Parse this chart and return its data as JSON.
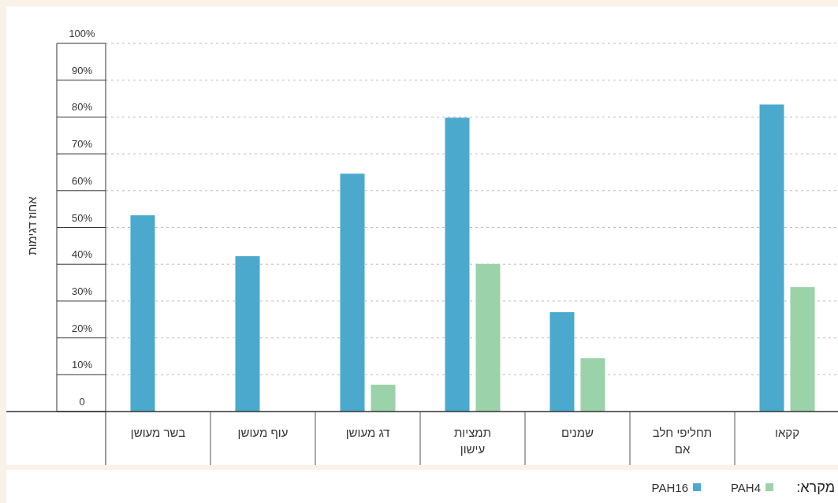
{
  "chart_data": {
    "type": "bar",
    "ylabel": "אחוז דגימות",
    "legend_title": "מקרא:",
    "categories": [
      "בשר מעושן",
      "עוף מעושן",
      "דג מעושן",
      "תמציות עישון",
      "שמנים",
      "תחליפי חלב אם",
      "קקאו"
    ],
    "series": [
      {
        "name": "PAH16",
        "color": "#4aa9cd",
        "values": [
          53.3,
          42.2,
          64.6,
          79.8,
          27.0,
          null,
          83.4
        ]
      },
      {
        "name": "PAH4",
        "color": "#9bd2aa",
        "values": [
          null,
          null,
          7.3,
          40.1,
          14.5,
          null,
          33.8
        ]
      }
    ],
    "ylim": [
      0,
      100
    ],
    "yticks": [
      0,
      {
        "value": 10,
        "label": "10%"
      },
      {
        "value": 20,
        "label": "20%"
      },
      {
        "value": 30,
        "label": "30%"
      },
      {
        "value": 40,
        "label": "40%"
      },
      {
        "value": 50,
        "label": "50%"
      },
      {
        "value": 60,
        "label": "60%"
      },
      {
        "value": 70,
        "label": "70%"
      },
      {
        "value": 80,
        "label": "80%"
      },
      {
        "value": 90,
        "label": "90%"
      },
      {
        "value": 100,
        "label": "100%"
      }
    ],
    "grid": "y",
    "legend": "bottom right"
  }
}
